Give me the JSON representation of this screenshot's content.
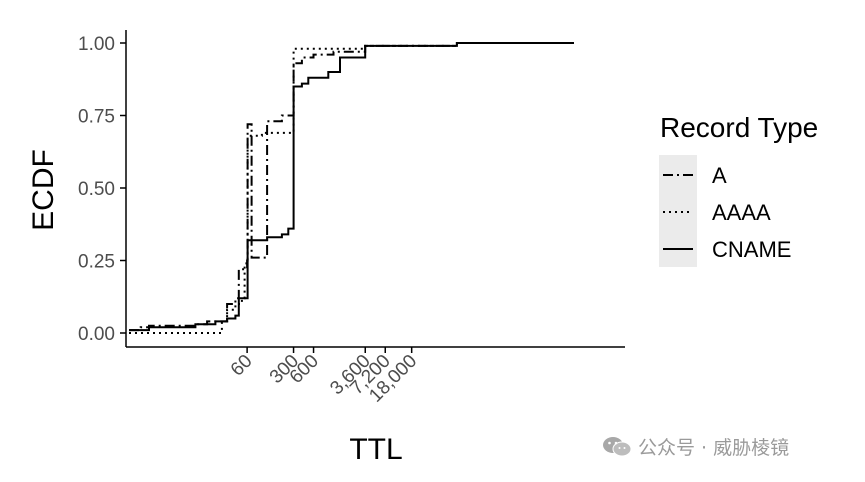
{
  "chart_data": {
    "type": "line",
    "subtype": "ecdf-step",
    "xlabel": "TTL",
    "ylabel": "ECDF",
    "x_scale": "log",
    "x_range": [
      1,
      10000000
    ],
    "ylim": [
      0,
      1
    ],
    "y_ticks": [
      "0.00",
      "0.25",
      "0.50",
      "0.75",
      "1.00"
    ],
    "x_ticks": [
      {
        "value": 60,
        "label": "60"
      },
      {
        "value": 300,
        "label": "300"
      },
      {
        "value": 600,
        "label": "600"
      },
      {
        "value": 3600,
        "label": "3,600"
      },
      {
        "value": 7200,
        "label": "7,200"
      },
      {
        "value": 18000,
        "label": "18,000"
      }
    ],
    "grid": false,
    "legend": {
      "title": "Record Type",
      "position": "right",
      "entries": [
        {
          "label": "A",
          "dash": "dashdot"
        },
        {
          "label": "AAAA",
          "dash": "dotted"
        },
        {
          "label": "CNAME",
          "dash": "solid"
        }
      ]
    },
    "series": [
      {
        "name": "A",
        "dash": "dashdot",
        "steps": [
          [
            1,
            0.01
          ],
          [
            1.5,
            0.02
          ],
          [
            2,
            0.025
          ],
          [
            10,
            0.03
          ],
          [
            15,
            0.04
          ],
          [
            30,
            0.1
          ],
          [
            40,
            0.12
          ],
          [
            45,
            0.22
          ],
          [
            60,
            0.25
          ],
          [
            70,
            0.26
          ],
          [
            100,
            0.26
          ],
          [
            60,
            0.25
          ],
          [
            61,
            0.72
          ],
          [
            120,
            0.73
          ],
          [
            200,
            0.75
          ],
          [
            300,
            0.76
          ],
          [
            301,
            0.93
          ],
          [
            400,
            0.95
          ],
          [
            600,
            0.96
          ],
          [
            1200,
            0.97
          ],
          [
            3600,
            0.99
          ],
          [
            86400,
            1.0
          ],
          [
            5000000,
            1.0
          ]
        ]
      },
      {
        "name": "AAAA",
        "dash": "dotted",
        "steps": [
          [
            1,
            0.0
          ],
          [
            20,
            0.0
          ],
          [
            25,
            0.04
          ],
          [
            30,
            0.08
          ],
          [
            40,
            0.1
          ],
          [
            50,
            0.12
          ],
          [
            55,
            0.24
          ],
          [
            60,
            0.24
          ],
          [
            61,
            0.68
          ],
          [
            100,
            0.69
          ],
          [
            200,
            0.69
          ],
          [
            300,
            0.69
          ],
          [
            301,
            0.98
          ],
          [
            3600,
            0.99
          ],
          [
            86400,
            1.0
          ],
          [
            5000000,
            1.0
          ]
        ]
      },
      {
        "name": "CNAME",
        "dash": "solid",
        "steps": [
          [
            1,
            0.01
          ],
          [
            2,
            0.02
          ],
          [
            10,
            0.03
          ],
          [
            20,
            0.04
          ],
          [
            30,
            0.05
          ],
          [
            40,
            0.06
          ],
          [
            45,
            0.12
          ],
          [
            60,
            0.12
          ],
          [
            61,
            0.32
          ],
          [
            120,
            0.33
          ],
          [
            200,
            0.34
          ],
          [
            250,
            0.36
          ],
          [
            301,
            0.85
          ],
          [
            400,
            0.86
          ],
          [
            500,
            0.88
          ],
          [
            1000,
            0.9
          ],
          [
            1500,
            0.95
          ],
          [
            3600,
            0.99
          ],
          [
            86400,
            1.0
          ],
          [
            5000000,
            1.0
          ]
        ]
      }
    ]
  },
  "colors": {
    "line": "#000000",
    "axis": "#000000",
    "tick_text": "#4d4d4d",
    "legend_key_bg": "#ebebeb",
    "watermark": "#9a9a9a"
  },
  "watermark": {
    "text": "公众号 · 威胁棱镜",
    "icon": "wechat-icon"
  }
}
